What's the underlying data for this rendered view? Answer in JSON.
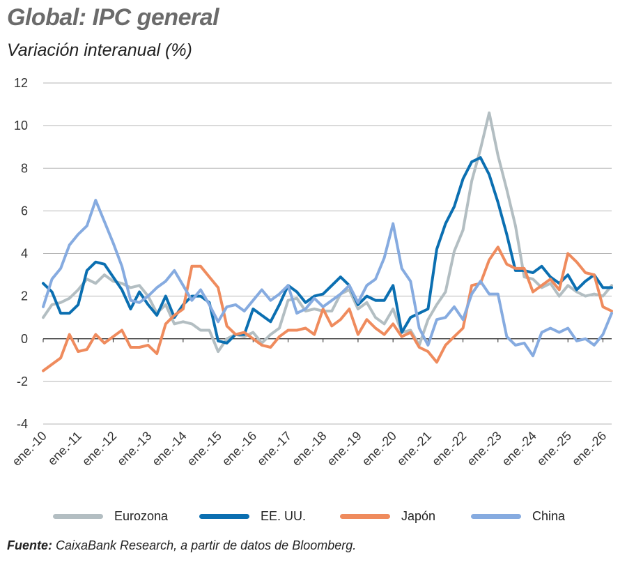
{
  "header": {
    "title": "Global: IPC general",
    "subtitle": "Variación interanual (%)"
  },
  "source": {
    "label": "Fuente:",
    "text": " CaixaBank Research, a partir de datos de Bloomberg."
  },
  "chart_data": {
    "type": "line",
    "title": "Global: IPC general",
    "subtitle": "Variación interanual (%)",
    "xlabel": "",
    "ylabel": "",
    "ylim": [
      -4,
      12
    ],
    "yticks": [
      -4,
      -2,
      0,
      2,
      4,
      6,
      8,
      10,
      12
    ],
    "x_start_year": 2010,
    "x_tick_labels": [
      "ene.-10",
      "ene.-11",
      "ene.-12",
      "ene.-13",
      "ene.-14",
      "ene.-15",
      "ene.-16",
      "ene.-17",
      "ene.-18",
      "ene.-19",
      "ene.-20",
      "ene.-21",
      "ene.-22",
      "ene.-23",
      "ene.-24",
      "ene.-25",
      "ene.-26"
    ],
    "grid": true,
    "legend_position": "bottom",
    "series": [
      {
        "name": "Eurozona",
        "color": "#b3bec2",
        "points": [
          [
            "2010-01-01",
            1.0
          ],
          [
            "2010-04-01",
            1.6
          ],
          [
            "2010-07-01",
            1.7
          ],
          [
            "2010-10-01",
            1.9
          ],
          [
            "2011-01-01",
            2.3
          ],
          [
            "2011-04-01",
            2.8
          ],
          [
            "2011-07-01",
            2.6
          ],
          [
            "2011-10-01",
            3.0
          ],
          [
            "2012-01-01",
            2.7
          ],
          [
            "2012-04-01",
            2.6
          ],
          [
            "2012-07-01",
            2.4
          ],
          [
            "2012-10-01",
            2.5
          ],
          [
            "2013-01-01",
            2.0
          ],
          [
            "2013-04-01",
            1.2
          ],
          [
            "2013-07-01",
            1.6
          ],
          [
            "2013-10-01",
            0.7
          ],
          [
            "2014-01-01",
            0.8
          ],
          [
            "2014-04-01",
            0.7
          ],
          [
            "2014-07-01",
            0.4
          ],
          [
            "2014-10-01",
            0.4
          ],
          [
            "2015-01-01",
            -0.6
          ],
          [
            "2015-04-01",
            0.0
          ],
          [
            "2015-07-01",
            0.2
          ],
          [
            "2015-10-01",
            0.1
          ],
          [
            "2016-01-01",
            0.3
          ],
          [
            "2016-04-01",
            -0.2
          ],
          [
            "2016-07-01",
            0.2
          ],
          [
            "2016-10-01",
            0.5
          ],
          [
            "2017-01-01",
            1.8
          ],
          [
            "2017-04-01",
            1.9
          ],
          [
            "2017-07-01",
            1.3
          ],
          [
            "2017-10-01",
            1.4
          ],
          [
            "2018-01-01",
            1.3
          ],
          [
            "2018-04-01",
            1.3
          ],
          [
            "2018-07-01",
            2.1
          ],
          [
            "2018-10-01",
            2.3
          ],
          [
            "2019-01-01",
            1.4
          ],
          [
            "2019-04-01",
            1.7
          ],
          [
            "2019-07-01",
            1.0
          ],
          [
            "2019-10-01",
            0.7
          ],
          [
            "2020-01-01",
            1.4
          ],
          [
            "2020-04-01",
            0.3
          ],
          [
            "2020-07-01",
            0.4
          ],
          [
            "2020-10-01",
            -0.3
          ],
          [
            "2021-01-01",
            0.9
          ],
          [
            "2021-04-01",
            1.6
          ],
          [
            "2021-07-01",
            2.2
          ],
          [
            "2021-10-01",
            4.1
          ],
          [
            "2022-01-01",
            5.1
          ],
          [
            "2022-04-01",
            7.4
          ],
          [
            "2022-07-01",
            8.9
          ],
          [
            "2022-10-01",
            10.6
          ],
          [
            "2023-01-01",
            8.6
          ],
          [
            "2023-04-01",
            7.0
          ],
          [
            "2023-07-01",
            5.3
          ],
          [
            "2023-10-01",
            2.9
          ],
          [
            "2024-01-01",
            2.8
          ],
          [
            "2024-04-01",
            2.4
          ],
          [
            "2024-07-01",
            2.6
          ],
          [
            "2024-10-01",
            2.0
          ],
          [
            "2025-01-01",
            2.5
          ],
          [
            "2025-04-01",
            2.2
          ],
          [
            "2025-07-01",
            2.0
          ],
          [
            "2025-10-01",
            2.1
          ],
          [
            "2026-01-01",
            2.0
          ],
          [
            "2026-04-01",
            2.5
          ]
        ]
      },
      {
        "name": "EE. UU.",
        "color": "#0b6fb1",
        "points": [
          [
            "2010-01-01",
            2.6
          ],
          [
            "2010-04-01",
            2.2
          ],
          [
            "2010-07-01",
            1.2
          ],
          [
            "2010-10-01",
            1.2
          ],
          [
            "2011-01-01",
            1.6
          ],
          [
            "2011-04-01",
            3.2
          ],
          [
            "2011-07-01",
            3.6
          ],
          [
            "2011-10-01",
            3.5
          ],
          [
            "2012-01-01",
            2.9
          ],
          [
            "2012-04-01",
            2.3
          ],
          [
            "2012-07-01",
            1.4
          ],
          [
            "2012-10-01",
            2.2
          ],
          [
            "2013-01-01",
            1.6
          ],
          [
            "2013-04-01",
            1.1
          ],
          [
            "2013-07-01",
            2.0
          ],
          [
            "2013-10-01",
            1.0
          ],
          [
            "2014-01-01",
            1.6
          ],
          [
            "2014-04-01",
            2.0
          ],
          [
            "2014-07-01",
            2.0
          ],
          [
            "2014-10-01",
            1.7
          ],
          [
            "2015-01-01",
            -0.1
          ],
          [
            "2015-04-01",
            -0.2
          ],
          [
            "2015-07-01",
            0.2
          ],
          [
            "2015-10-01",
            0.2
          ],
          [
            "2016-01-01",
            1.4
          ],
          [
            "2016-04-01",
            1.1
          ],
          [
            "2016-07-01",
            0.8
          ],
          [
            "2016-10-01",
            1.6
          ],
          [
            "2017-01-01",
            2.5
          ],
          [
            "2017-04-01",
            2.2
          ],
          [
            "2017-07-01",
            1.7
          ],
          [
            "2017-10-01",
            2.0
          ],
          [
            "2018-01-01",
            2.1
          ],
          [
            "2018-04-01",
            2.5
          ],
          [
            "2018-07-01",
            2.9
          ],
          [
            "2018-10-01",
            2.5
          ],
          [
            "2019-01-01",
            1.6
          ],
          [
            "2019-04-01",
            2.0
          ],
          [
            "2019-07-01",
            1.8
          ],
          [
            "2019-10-01",
            1.8
          ],
          [
            "2020-01-01",
            2.5
          ],
          [
            "2020-04-01",
            0.3
          ],
          [
            "2020-07-01",
            1.0
          ],
          [
            "2020-10-01",
            1.2
          ],
          [
            "2021-01-01",
            1.4
          ],
          [
            "2021-04-01",
            4.2
          ],
          [
            "2021-07-01",
            5.4
          ],
          [
            "2021-10-01",
            6.2
          ],
          [
            "2022-01-01",
            7.5
          ],
          [
            "2022-04-01",
            8.3
          ],
          [
            "2022-07-01",
            8.5
          ],
          [
            "2022-10-01",
            7.7
          ],
          [
            "2023-01-01",
            6.4
          ],
          [
            "2023-04-01",
            4.9
          ],
          [
            "2023-07-01",
            3.2
          ],
          [
            "2023-10-01",
            3.2
          ],
          [
            "2024-01-01",
            3.1
          ],
          [
            "2024-04-01",
            3.4
          ],
          [
            "2024-07-01",
            2.9
          ],
          [
            "2024-10-01",
            2.6
          ],
          [
            "2025-01-01",
            3.0
          ],
          [
            "2025-04-01",
            2.3
          ],
          [
            "2025-07-01",
            2.7
          ],
          [
            "2025-10-01",
            3.0
          ],
          [
            "2026-01-01",
            2.4
          ],
          [
            "2026-04-01",
            2.4
          ]
        ]
      },
      {
        "name": "Japón",
        "color": "#ef8b5d",
        "points": [
          [
            "2010-01-01",
            -1.5
          ],
          [
            "2010-04-01",
            -1.2
          ],
          [
            "2010-07-01",
            -0.9
          ],
          [
            "2010-10-01",
            0.2
          ],
          [
            "2011-01-01",
            -0.6
          ],
          [
            "2011-04-01",
            -0.5
          ],
          [
            "2011-07-01",
            0.2
          ],
          [
            "2011-10-01",
            -0.2
          ],
          [
            "2012-01-01",
            0.1
          ],
          [
            "2012-04-01",
            0.4
          ],
          [
            "2012-07-01",
            -0.4
          ],
          [
            "2012-10-01",
            -0.4
          ],
          [
            "2013-01-01",
            -0.3
          ],
          [
            "2013-04-01",
            -0.7
          ],
          [
            "2013-07-01",
            0.7
          ],
          [
            "2013-10-01",
            1.1
          ],
          [
            "2014-01-01",
            1.4
          ],
          [
            "2014-04-01",
            3.4
          ],
          [
            "2014-07-01",
            3.4
          ],
          [
            "2014-10-01",
            2.9
          ],
          [
            "2015-01-01",
            2.4
          ],
          [
            "2015-04-01",
            0.6
          ],
          [
            "2015-07-01",
            0.2
          ],
          [
            "2015-10-01",
            0.3
          ],
          [
            "2016-01-01",
            0.0
          ],
          [
            "2016-04-01",
            -0.3
          ],
          [
            "2016-07-01",
            -0.4
          ],
          [
            "2016-10-01",
            0.1
          ],
          [
            "2017-01-01",
            0.4
          ],
          [
            "2017-04-01",
            0.4
          ],
          [
            "2017-07-01",
            0.5
          ],
          [
            "2017-10-01",
            0.2
          ],
          [
            "2018-01-01",
            1.4
          ],
          [
            "2018-04-01",
            0.6
          ],
          [
            "2018-07-01",
            0.9
          ],
          [
            "2018-10-01",
            1.4
          ],
          [
            "2019-01-01",
            0.2
          ],
          [
            "2019-04-01",
            0.9
          ],
          [
            "2019-07-01",
            0.5
          ],
          [
            "2019-10-01",
            0.2
          ],
          [
            "2020-01-01",
            0.7
          ],
          [
            "2020-04-01",
            0.1
          ],
          [
            "2020-07-01",
            0.3
          ],
          [
            "2020-10-01",
            -0.4
          ],
          [
            "2021-01-01",
            -0.6
          ],
          [
            "2021-04-01",
            -1.1
          ],
          [
            "2021-07-01",
            -0.3
          ],
          [
            "2021-10-01",
            0.1
          ],
          [
            "2022-01-01",
            0.5
          ],
          [
            "2022-04-01",
            2.5
          ],
          [
            "2022-07-01",
            2.6
          ],
          [
            "2022-10-01",
            3.7
          ],
          [
            "2023-01-01",
            4.3
          ],
          [
            "2023-04-01",
            3.5
          ],
          [
            "2023-07-01",
            3.3
          ],
          [
            "2023-10-01",
            3.3
          ],
          [
            "2024-01-01",
            2.2
          ],
          [
            "2024-04-01",
            2.5
          ],
          [
            "2024-07-01",
            2.8
          ],
          [
            "2024-10-01",
            2.3
          ],
          [
            "2025-01-01",
            4.0
          ],
          [
            "2025-04-01",
            3.6
          ],
          [
            "2025-07-01",
            3.1
          ],
          [
            "2025-10-01",
            3.0
          ],
          [
            "2026-01-01",
            1.5
          ],
          [
            "2026-04-01",
            1.3
          ]
        ]
      },
      {
        "name": "China",
        "color": "#86abe0",
        "points": [
          [
            "2010-01-01",
            1.5
          ],
          [
            "2010-04-01",
            2.8
          ],
          [
            "2010-07-01",
            3.3
          ],
          [
            "2010-10-01",
            4.4
          ],
          [
            "2011-01-01",
            4.9
          ],
          [
            "2011-04-01",
            5.3
          ],
          [
            "2011-07-01",
            6.5
          ],
          [
            "2011-10-01",
            5.5
          ],
          [
            "2012-01-01",
            4.5
          ],
          [
            "2012-04-01",
            3.4
          ],
          [
            "2012-07-01",
            1.8
          ],
          [
            "2012-10-01",
            1.7
          ],
          [
            "2013-01-01",
            2.0
          ],
          [
            "2013-04-01",
            2.4
          ],
          [
            "2013-07-01",
            2.7
          ],
          [
            "2013-10-01",
            3.2
          ],
          [
            "2014-01-01",
            2.5
          ],
          [
            "2014-04-01",
            1.8
          ],
          [
            "2014-07-01",
            2.3
          ],
          [
            "2014-10-01",
            1.6
          ],
          [
            "2015-01-01",
            0.8
          ],
          [
            "2015-04-01",
            1.5
          ],
          [
            "2015-07-01",
            1.6
          ],
          [
            "2015-10-01",
            1.3
          ],
          [
            "2016-01-01",
            1.8
          ],
          [
            "2016-04-01",
            2.3
          ],
          [
            "2016-07-01",
            1.8
          ],
          [
            "2016-10-01",
            2.1
          ],
          [
            "2017-01-01",
            2.5
          ],
          [
            "2017-04-01",
            1.2
          ],
          [
            "2017-07-01",
            1.4
          ],
          [
            "2017-10-01",
            1.9
          ],
          [
            "2018-01-01",
            1.5
          ],
          [
            "2018-04-01",
            1.8
          ],
          [
            "2018-07-01",
            2.1
          ],
          [
            "2018-10-01",
            2.5
          ],
          [
            "2019-01-01",
            1.7
          ],
          [
            "2019-04-01",
            2.5
          ],
          [
            "2019-07-01",
            2.8
          ],
          [
            "2019-10-01",
            3.8
          ],
          [
            "2020-01-01",
            5.4
          ],
          [
            "2020-04-01",
            3.3
          ],
          [
            "2020-07-01",
            2.7
          ],
          [
            "2020-10-01",
            0.5
          ],
          [
            "2021-01-01",
            -0.3
          ],
          [
            "2021-04-01",
            0.9
          ],
          [
            "2021-07-01",
            1.0
          ],
          [
            "2021-10-01",
            1.5
          ],
          [
            "2022-01-01",
            0.9
          ],
          [
            "2022-04-01",
            2.1
          ],
          [
            "2022-07-01",
            2.7
          ],
          [
            "2022-10-01",
            2.1
          ],
          [
            "2023-01-01",
            2.1
          ],
          [
            "2023-04-01",
            0.1
          ],
          [
            "2023-07-01",
            -0.3
          ],
          [
            "2023-10-01",
            -0.2
          ],
          [
            "2024-01-01",
            -0.8
          ],
          [
            "2024-04-01",
            0.3
          ],
          [
            "2024-07-01",
            0.5
          ],
          [
            "2024-10-01",
            0.3
          ],
          [
            "2025-01-01",
            0.5
          ],
          [
            "2025-04-01",
            -0.1
          ],
          [
            "2025-07-01",
            0.0
          ],
          [
            "2025-10-01",
            -0.3
          ],
          [
            "2026-01-01",
            0.2
          ],
          [
            "2026-04-01",
            1.2
          ]
        ]
      }
    ]
  }
}
